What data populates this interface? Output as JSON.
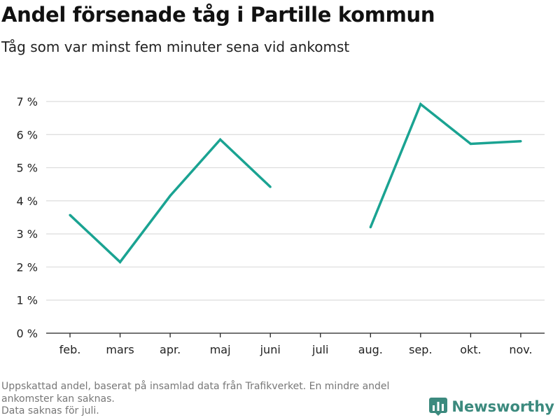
{
  "title": "Andel försenade tåg i Partille kommun",
  "subtitle": "Tåg som var minst fem minuter sena vid ankomst",
  "footer": {
    "line1": "Uppskattad andel, baserat på insamlad data från Trafikverket. En mindre andel",
    "line2": "ankomster kan saknas.",
    "line3": "Data saknas för juli."
  },
  "brand": {
    "name": "Newsworthy",
    "icon": "newsworthy-logo-icon",
    "color": "#3c8a7e"
  },
  "chart_data": {
    "type": "line",
    "categories": [
      "feb.",
      "mars",
      "apr.",
      "maj",
      "juni",
      "juli",
      "aug.",
      "sep.",
      "okt.",
      "nov."
    ],
    "series": [
      {
        "values": [
          3.57,
          2.15,
          4.15,
          5.85,
          4.42,
          null,
          3.2,
          6.92,
          5.72,
          5.8
        ],
        "color": "#1aa392"
      }
    ],
    "yticks": [
      "0 %",
      "1 %",
      "2 %",
      "3 %",
      "4 %",
      "5 %",
      "6 %",
      "7 %"
    ],
    "ylim": [
      0,
      7
    ],
    "grid": true
  }
}
